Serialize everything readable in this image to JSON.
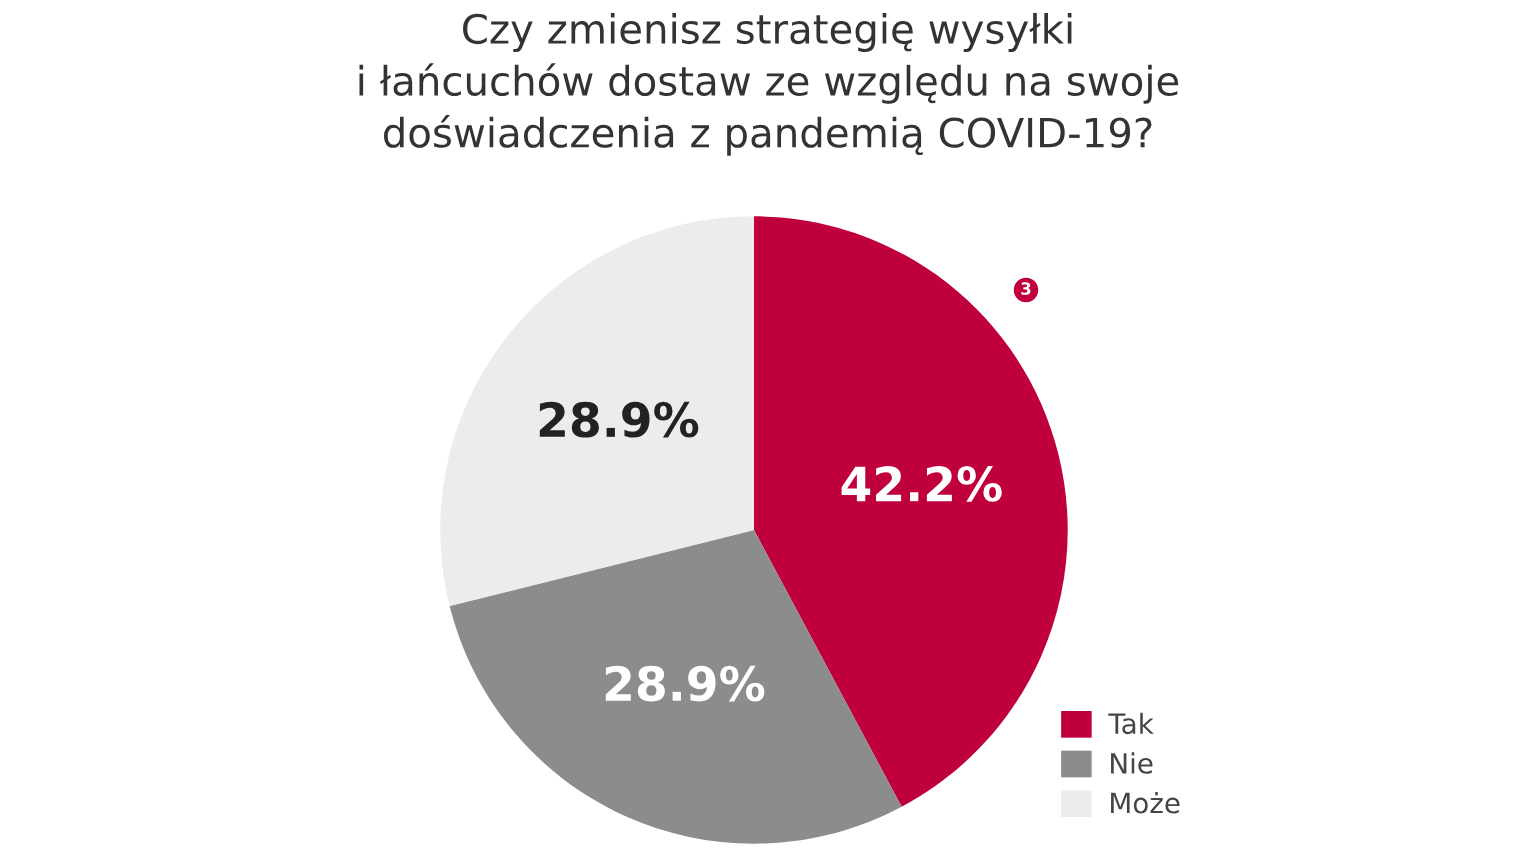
{
  "chart_data": {
    "type": "pie",
    "title": "Czy zmienisz strategię wysyłki\ni łańcuchów dostaw ze względu na swoje\ndoświadczenia z pandemią COVID-19?",
    "categories": [
      "Tak",
      "Nie",
      "Może"
    ],
    "values": [
      42.2,
      28.9,
      28.9
    ],
    "colors": [
      "#c0003c",
      "#8c8c8c",
      "#ececec"
    ],
    "value_labels": [
      "42.2%",
      "28.9%",
      "28.9%"
    ],
    "legend": "bottom right",
    "annotations": [
      "3"
    ]
  }
}
